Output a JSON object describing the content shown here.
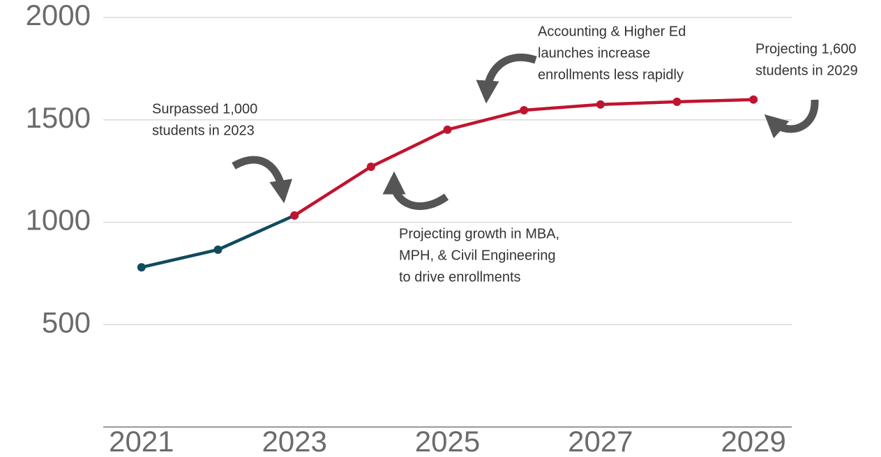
{
  "chart_data": {
    "type": "line",
    "x": [
      2021,
      2022,
      2023,
      2024,
      2025,
      2026,
      2027,
      2028,
      2029
    ],
    "series": [
      {
        "color": "#114b5f",
        "values": [
          780,
          866,
          1033,
          null,
          null,
          null,
          null,
          null,
          null
        ]
      },
      {
        "color": "#c0142f",
        "values": [
          null,
          null,
          1033,
          1271,
          1452,
          1547,
          1575,
          1588,
          1599
        ]
      }
    ],
    "xlim": [
      2020.5,
      2029.5
    ],
    "xticks": [
      2021,
      2023,
      2025,
      2027,
      2029
    ],
    "ylim": [
      0,
      2000
    ],
    "yticks": [
      500,
      1000,
      1500,
      2000
    ],
    "grid": true,
    "annotations": [
      {
        "lines": [
          "Surpassed 1,000",
          "students in 2023"
        ]
      },
      {
        "lines": [
          "Projecting growth in MBA,",
          "MPH, & Civil Engineering",
          "to drive enrollments"
        ]
      },
      {
        "lines": [
          "Accounting & Higher Ed",
          "launches increase",
          "enrollments less rapidly"
        ]
      },
      {
        "lines": [
          "Projecting 1,600",
          "students in 2029"
        ]
      }
    ]
  }
}
